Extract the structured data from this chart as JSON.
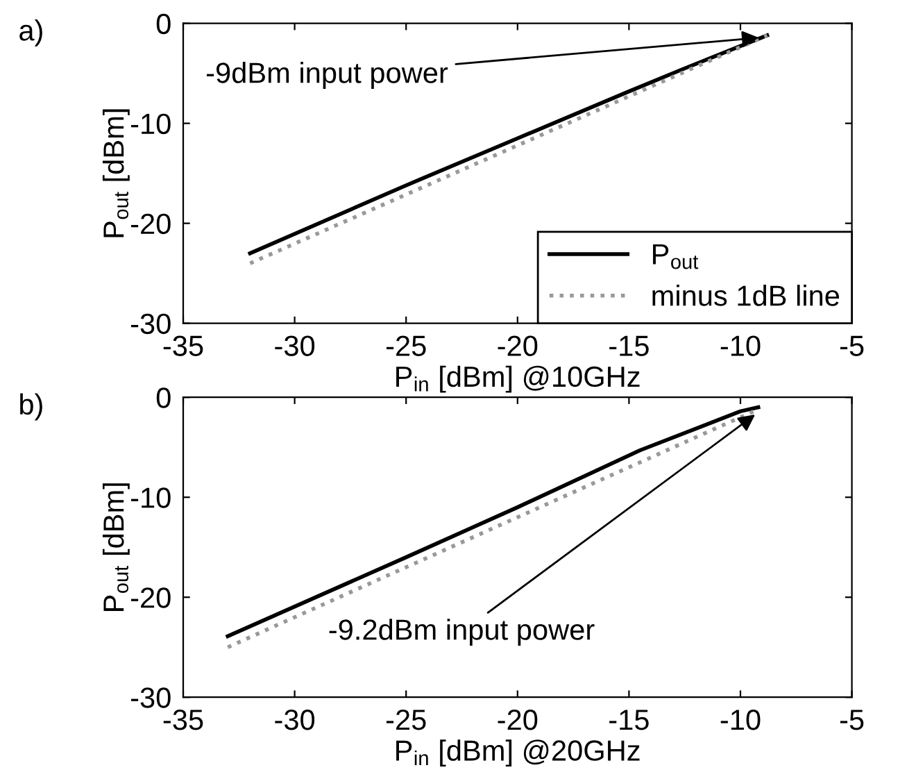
{
  "chart_data": [
    {
      "type": "line",
      "xlabel": "P$_{in}$ [dBm] @10GHz",
      "ylabel": "P$_{out}$ [dBm]",
      "xlim": [
        -35,
        -5
      ],
      "ylim": [
        -30,
        0
      ],
      "xticks": [
        -35,
        -30,
        -25,
        -20,
        -15,
        -10,
        -5
      ],
      "yticks": [
        -30,
        -20,
        -10,
        0
      ],
      "legend": "bottom right",
      "grid": false,
      "annotations": [
        "a)",
        {
          "text": "-9dBm input power",
          "x": -9,
          "y": -1.4
        }
      ],
      "series": [
        {
          "name": "P$_{out}$",
          "color": "#000000",
          "line_style": "solid",
          "x": [
            -32,
            -25,
            -20,
            -15,
            -12.5,
            -8.8
          ],
          "values": [
            -23,
            -16.2,
            -11.5,
            -6.8,
            -4.5,
            -1.2
          ]
        },
        {
          "name": "minus 1dB line",
          "color": "#999999",
          "line_style": "dotted",
          "x": [
            -32,
            -8.8
          ],
          "values": [
            -24,
            -1.2
          ]
        }
      ]
    },
    {
      "type": "line",
      "xlabel": "P$_{in}$ [dBm] @20GHz",
      "ylabel": "P$_{out}$ [dBm]",
      "xlim": [
        -35,
        -5
      ],
      "ylim": [
        -30,
        0
      ],
      "xticks": [
        -35,
        -30,
        -25,
        -20,
        -15,
        -10,
        -5
      ],
      "yticks": [
        -30,
        -20,
        -10,
        0
      ],
      "legend": false,
      "grid": false,
      "annotations": [
        "b)",
        {
          "text": "-9.2dBm input power",
          "x": -9.2,
          "y": -1.5
        }
      ],
      "series": [
        {
          "color": "#000000",
          "line_style": "solid",
          "x": [
            -33,
            -25,
            -20,
            -14.5,
            -10,
            -9.2
          ],
          "values": [
            -23.9,
            -16,
            -11,
            -5.3,
            -1.4,
            -1
          ]
        },
        {
          "color": "#999999",
          "line_style": "dotted",
          "x": [
            -33,
            -9.2
          ],
          "values": [
            -25,
            -1.2
          ]
        }
      ]
    }
  ]
}
